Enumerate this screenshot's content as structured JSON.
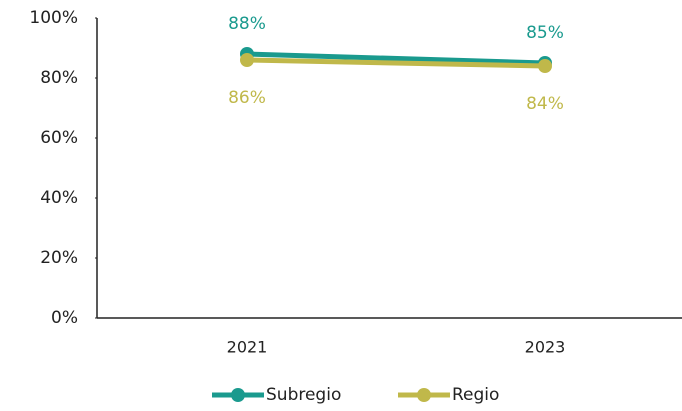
{
  "chart_data": {
    "type": "line",
    "categories": [
      "2021",
      "2023"
    ],
    "series": [
      {
        "name": "Subregio",
        "color": "#1a9a8e",
        "values": [
          88,
          85
        ],
        "value_labels": [
          "88%",
          "85%"
        ]
      },
      {
        "name": "Regio",
        "color": "#c0b84a",
        "values": [
          86,
          84
        ],
        "value_labels": [
          "86%",
          "84%"
        ]
      }
    ],
    "ylim": [
      0,
      100
    ],
    "yticks": [
      {
        "value": 0,
        "label": "0%"
      },
      {
        "value": 20,
        "label": "20%"
      },
      {
        "value": 40,
        "label": "40%"
      },
      {
        "value": 60,
        "label": "60%"
      },
      {
        "value": 80,
        "label": "80%"
      },
      {
        "value": 100,
        "label": "100%"
      }
    ],
    "grid": false
  }
}
